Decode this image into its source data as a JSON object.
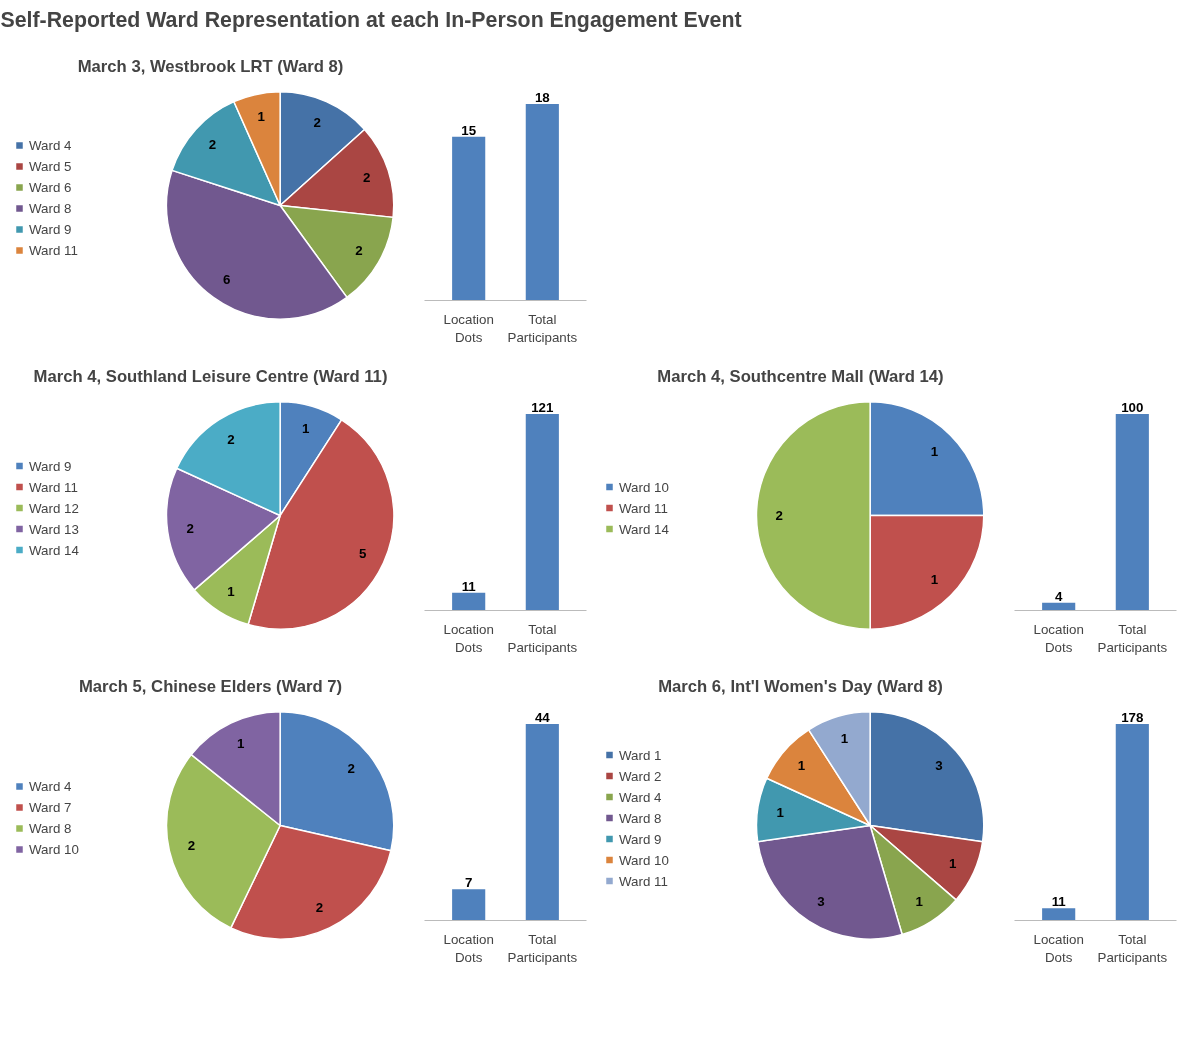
{
  "chart_data": [
    {
      "type": "other",
      "title": "Self-Reported Ward Representation at each In-Person Engagement Event"
    },
    {
      "type": "pie",
      "title": "March 3, Westbrook LRT (Ward 8)",
      "categories": [
        "Ward 4",
        "Ward 5",
        "Ward 6",
        "Ward 8",
        "Ward 9",
        "Ward 11"
      ],
      "values": [
        2,
        2,
        2,
        6,
        2,
        1
      ],
      "colors": [
        "#4572a7",
        "#aa4643",
        "#89a54e",
        "#71588f",
        "#4198af",
        "#db843d"
      ],
      "data_labels": true,
      "legend": "left"
    },
    {
      "type": "bar",
      "categories": [
        "Location Dots",
        "Total Participants"
      ],
      "values": [
        15,
        18
      ],
      "color": "#4f81bd",
      "data_labels": true
    },
    {
      "type": "pie",
      "title": "March 4, Southland Leisure Centre (Ward 11)",
      "categories": [
        "Ward 9",
        "Ward 11",
        "Ward 12",
        "Ward 13",
        "Ward 14"
      ],
      "values": [
        1,
        5,
        1,
        2,
        2
      ],
      "colors": [
        "#4f81bd",
        "#c0504d",
        "#9bbb59",
        "#8064a2",
        "#4bacc6"
      ],
      "data_labels": true,
      "legend": "left"
    },
    {
      "type": "bar",
      "categories": [
        "Location Dots",
        "Total Participants"
      ],
      "values": [
        11,
        121
      ],
      "color": "#4f81bd",
      "data_labels": true
    },
    {
      "type": "pie",
      "title": "March 4, Southcentre Mall (Ward 14)",
      "categories": [
        "Ward 10",
        "Ward 11",
        "Ward 14"
      ],
      "values": [
        1,
        1,
        2
      ],
      "colors": [
        "#4f81bd",
        "#c0504d",
        "#9bbb59"
      ],
      "data_labels": true,
      "legend": "left"
    },
    {
      "type": "bar",
      "categories": [
        "Location Dots",
        "Total Participants"
      ],
      "values": [
        4,
        100
      ],
      "color": "#4f81bd",
      "data_labels": true
    },
    {
      "type": "pie",
      "title": "March 5, Chinese Elders (Ward 7)",
      "categories": [
        "Ward 4",
        "Ward 7",
        "Ward 8",
        "Ward 10"
      ],
      "values": [
        2,
        2,
        2,
        1
      ],
      "colors": [
        "#4f81bd",
        "#c0504d",
        "#9bbb59",
        "#8064a2"
      ],
      "data_labels": true,
      "legend": "left"
    },
    {
      "type": "bar",
      "categories": [
        "Location Dots",
        "Total Participants"
      ],
      "values": [
        7,
        44
      ],
      "color": "#4f81bd",
      "data_labels": true
    },
    {
      "type": "pie",
      "title": "March 6, Int'l Women's Day (Ward 8)",
      "categories": [
        "Ward 1",
        "Ward 2",
        "Ward 4",
        "Ward 8",
        "Ward 9",
        "Ward 10",
        "Ward 11"
      ],
      "values": [
        3,
        1,
        1,
        3,
        1,
        1,
        1
      ],
      "colors": [
        "#4572a7",
        "#aa4643",
        "#89a54e",
        "#71588f",
        "#4198af",
        "#db843d",
        "#93a9cf"
      ],
      "data_labels": true,
      "legend": "left"
    },
    {
      "type": "bar",
      "categories": [
        "Location Dots",
        "Total Participants"
      ],
      "values": [
        11,
        178
      ],
      "color": "#4f81bd",
      "data_labels": true
    }
  ]
}
